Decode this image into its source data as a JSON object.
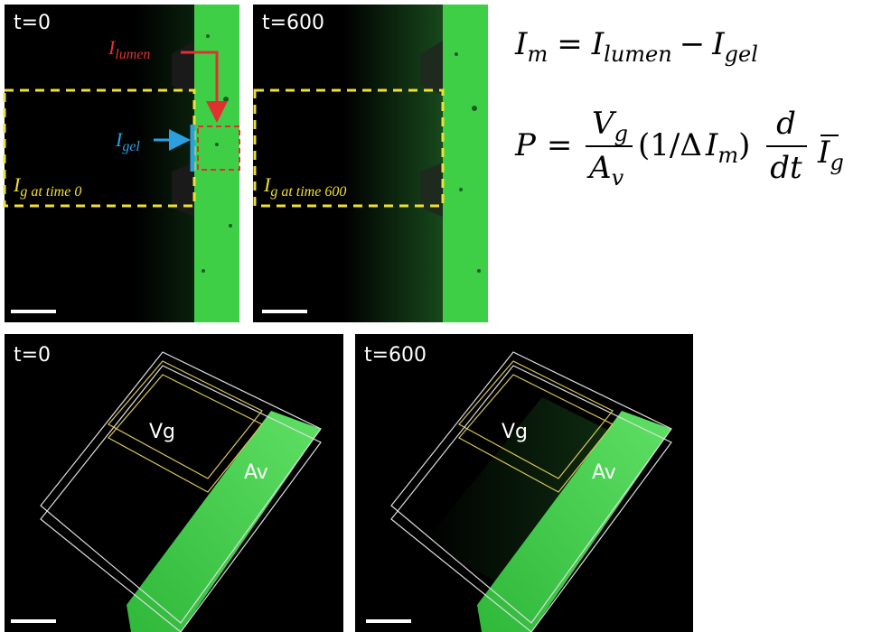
{
  "top_panels": [
    {
      "time": "t=0",
      "roi_label": {
        "symbol": "I",
        "subscript": "g at time 0"
      }
    },
    {
      "time": "t=600",
      "roi_label": {
        "symbol": "I",
        "subscript": "g at time 600"
      }
    }
  ],
  "lumen_label": {
    "symbol": "I",
    "subscript": "lumen"
  },
  "gel_label": {
    "symbol": "I",
    "subscript": "gel"
  },
  "equations": {
    "intensity": {
      "lhs": {
        "base": "I",
        "sub": "m"
      },
      "equals": "=",
      "lumen": {
        "base": "I",
        "sub": "lumen"
      },
      "minus": "−",
      "gel": {
        "base": "I",
        "sub": "gel"
      }
    },
    "permeability": {
      "lhs": "P",
      "equals": "=",
      "numerator": {
        "base": "V",
        "sub": "g"
      },
      "denominator": {
        "base": "A",
        "sub": "v"
      },
      "factor_open": "(1/Δ",
      "factor_term": {
        "base": "I",
        "sub": "m"
      },
      "factor_close": ")",
      "deriv_top": "d",
      "deriv_bottom": "dt",
      "mean": {
        "base": "I",
        "sub": "g"
      }
    }
  },
  "bottom_panels": [
    {
      "time": "t=0",
      "volume_label": "Vg",
      "area_label": "Av"
    },
    {
      "time": "t=600",
      "volume_label": "Vg",
      "area_label": "Av"
    }
  ]
}
